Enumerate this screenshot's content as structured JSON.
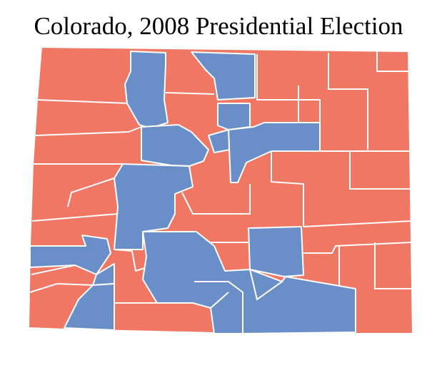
{
  "title": "Colorado, 2008 Presidential Election"
}
